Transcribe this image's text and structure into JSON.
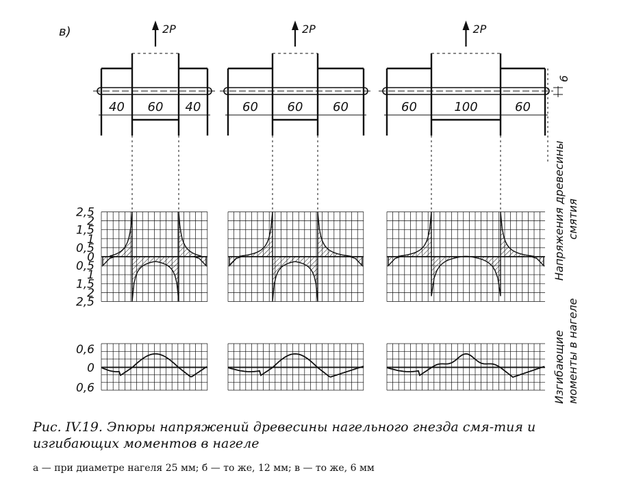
{
  "panel_label": "в)",
  "load_label": "2P",
  "joints": [
    {
      "dims": [
        "40",
        "60",
        "40"
      ]
    },
    {
      "dims": [
        "60",
        "60",
        "60"
      ]
    },
    {
      "dims": [
        "60",
        "100",
        "60"
      ]
    }
  ],
  "gap_label": "6",
  "stress_ticks": [
    "2,5",
    "2",
    "1,5",
    "1",
    "0,5",
    "0",
    "0,5",
    "1",
    "1,5",
    "2",
    "2,5"
  ],
  "moment_ticks": [
    "0,6",
    "0",
    "0,6"
  ],
  "right_label_stress_1": "Напряжения древесины",
  "right_label_stress_2": "смятия",
  "right_label_moment_1": "Изгибающие",
  "right_label_moment_2": "моменты в нагеле",
  "caption": {
    "title": "Рис. IV.19. Эпюры напряжений древесины нагельного гнезда смя-тия и изгибающих моментов в нагеле",
    "subtitle": "а — при диаметре нагеля 25 мм; б — то же, 12 мм; в — то же, 6 мм"
  }
}
